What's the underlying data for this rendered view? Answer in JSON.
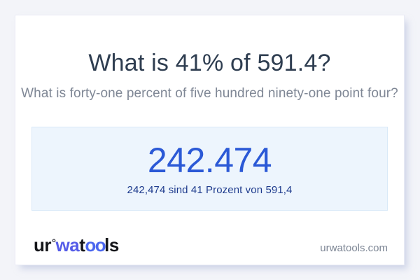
{
  "question": {
    "title": "What is 41% of 591.4?",
    "subtitle": "What is forty-one percent of five hundred ninety-one point four?"
  },
  "answer": {
    "value": "242.474",
    "detail": "242,474 sind 41 Prozent von 591,4",
    "value_color": "#2b59d6",
    "detail_color": "#1e3b8d",
    "box_background": "#edf5fd",
    "box_border": "#d9e9f8"
  },
  "logo": {
    "part_ur": "ur",
    "ring": "°",
    "part_wa": "wa",
    "part_t": "t",
    "part_oo": "oo",
    "part_ls": "ls",
    "dark_color": "#15161a",
    "blue_color": "#555ce8",
    "oo_color": "#4b67ef"
  },
  "footer": {
    "site_url": "urwatools.com"
  },
  "theme": {
    "page_background": "#f3f4f9",
    "card_background": "#ffffff",
    "title_color": "#2e3d50",
    "subtitle_color": "#7f8795"
  }
}
